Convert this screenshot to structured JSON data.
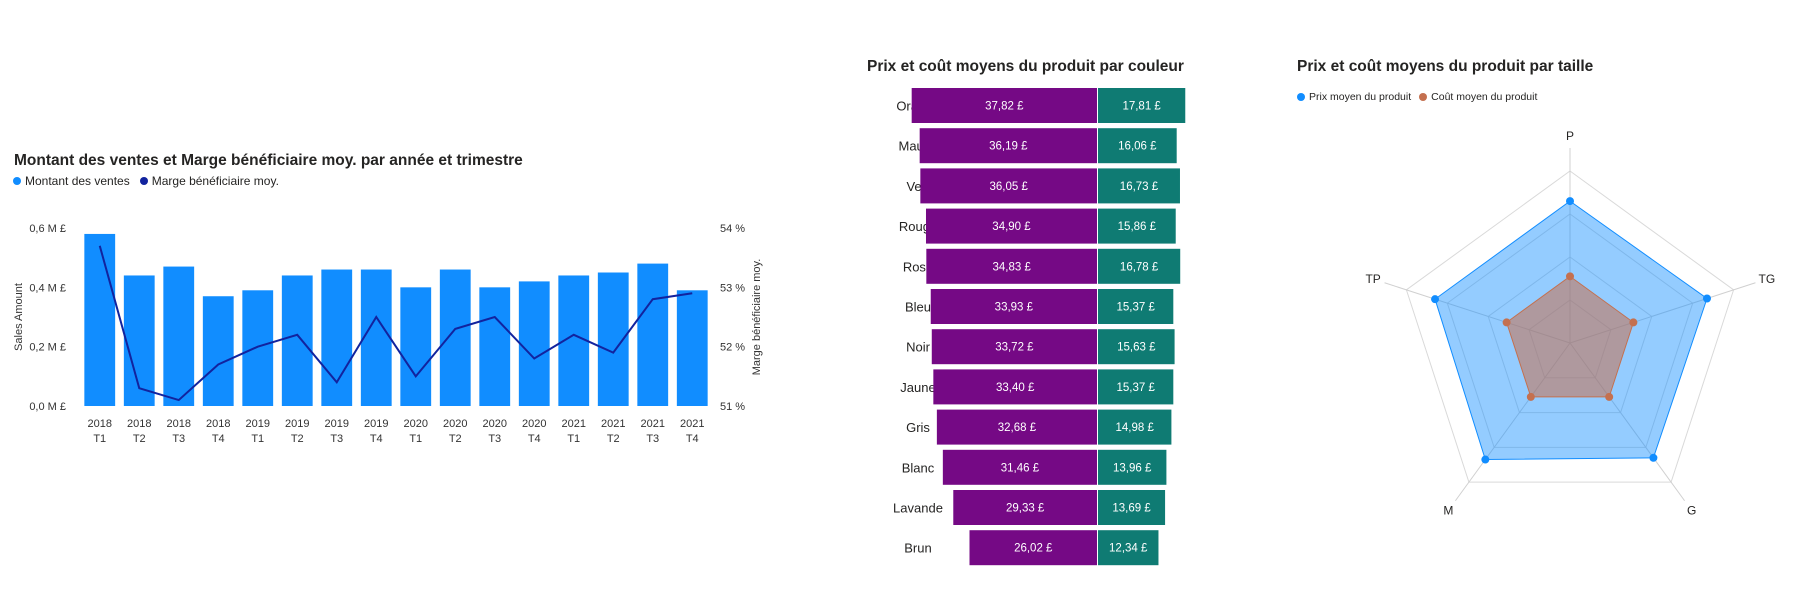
{
  "colors": {
    "sales_bar": "#118DFF",
    "margin_line": "#12239E",
    "avg_price": "#750985",
    "avg_cost": "#0F7B73",
    "radar_price": "#118DFF",
    "radar_cost": "#C4704F"
  },
  "chart_data": [
    {
      "type": "bar",
      "title": "Montant des ventes et Marge bénéficiaire moy. par année et trimestre",
      "legend_position": "top-left",
      "grid": false,
      "categories": [
        [
          "2018",
          "T1"
        ],
        [
          "2018",
          "T2"
        ],
        [
          "2018",
          "T3"
        ],
        [
          "2018",
          "T4"
        ],
        [
          "2019",
          "T1"
        ],
        [
          "2019",
          "T2"
        ],
        [
          "2019",
          "T3"
        ],
        [
          "2019",
          "T4"
        ],
        [
          "2020",
          "T1"
        ],
        [
          "2020",
          "T2"
        ],
        [
          "2020",
          "T3"
        ],
        [
          "2020",
          "T4"
        ],
        [
          "2021",
          "T1"
        ],
        [
          "2021",
          "T2"
        ],
        [
          "2021",
          "T3"
        ],
        [
          "2021",
          "T4"
        ]
      ],
      "ylabel": "Sales Amount",
      "y2label": "Marge bénéficiaire moy.",
      "ylim": [
        0,
        0.6
      ],
      "y2lim": [
        51,
        54
      ],
      "y_ticks": [
        "0,0 M £",
        "0,2 M £",
        "0,4 M £",
        "0,6 M £"
      ],
      "y_tick_values": [
        0,
        0.2,
        0.4,
        0.6
      ],
      "y2_ticks": [
        "51 %",
        "52 %",
        "53 %",
        "54 %"
      ],
      "y2_tick_values": [
        51,
        52,
        53,
        54
      ],
      "series": [
        {
          "name": "Montant des ventes",
          "kind": "bar",
          "axis": "left",
          "values": [
            0.58,
            0.44,
            0.47,
            0.37,
            0.39,
            0.44,
            0.46,
            0.46,
            0.4,
            0.46,
            0.4,
            0.42,
            0.44,
            0.45,
            0.48,
            0.39
          ]
        },
        {
          "name": "Marge bénéficiaire moy.",
          "kind": "line",
          "axis": "right",
          "values": [
            53.7,
            51.3,
            51.1,
            51.7,
            52.0,
            52.2,
            51.4,
            52.5,
            51.5,
            52.3,
            52.5,
            51.8,
            52.2,
            51.9,
            52.8,
            52.9
          ]
        }
      ]
    },
    {
      "type": "bar",
      "orientation": "horizontal",
      "title": "Prix et coût moyens du produit par couleur",
      "grid": false,
      "categories": [
        "Orange",
        "Mauve",
        "Vert",
        "Rouge",
        "Rose",
        "Bleu",
        "Noir",
        "Jaune",
        "Gris",
        "Blanc",
        "Lavande",
        "Brun"
      ],
      "series": [
        {
          "name": "Prix moyen du produit",
          "values": [
            37.82,
            36.19,
            36.05,
            34.9,
            34.83,
            33.93,
            33.72,
            33.4,
            32.68,
            31.46,
            29.33,
            26.02
          ],
          "labels": [
            "37,82 £",
            "36,19 £",
            "36,05 £",
            "34,90 £",
            "34,83 £",
            "33,93 £",
            "33,72 £",
            "33,40 £",
            "32,68 £",
            "31,46 £",
            "29,33 £",
            "26,02 £"
          ]
        },
        {
          "name": "Coût moyen du produit",
          "values": [
            17.81,
            16.06,
            16.73,
            15.86,
            16.78,
            15.37,
            15.63,
            15.37,
            14.98,
            13.96,
            13.69,
            12.34
          ],
          "labels": [
            "17,81 £",
            "16,06 £",
            "16,73 £",
            "15,86 £",
            "16,78 £",
            "15,37 £",
            "15,63 £",
            "15,37 £",
            "14,98 £",
            "13,96 £",
            "13,69 £",
            "12,34 £"
          ]
        }
      ]
    },
    {
      "type": "radar",
      "title": "Prix et coût moyens du produit par taille",
      "legend_position": "top-left",
      "categories": [
        "P",
        "TG",
        "G",
        "M",
        "TP"
      ],
      "rmax": 40,
      "series": [
        {
          "name": "Prix moyen du produit",
          "values": [
            33.0,
            33.5,
            33.0,
            33.5,
            33.0
          ]
        },
        {
          "name": "Coût moyen du produit",
          "values": [
            15.5,
            15.5,
            15.5,
            15.5,
            15.5
          ]
        }
      ]
    }
  ]
}
